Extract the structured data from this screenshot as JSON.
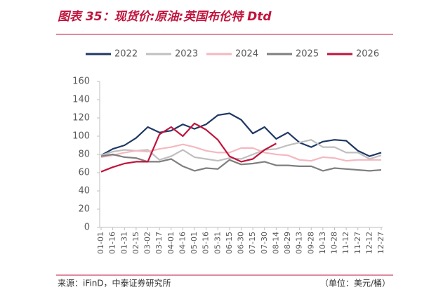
{
  "chart_data": {
    "type": "line",
    "title": "图表 35：现货价:原油:英国布伦特 Dtd",
    "source": "来源：iFinD，中泰证券研究所",
    "unit_note": "（单位：美元/桶）",
    "categories": [
      "01-01",
      "01-16",
      "01-31",
      "02-15",
      "03-02",
      "03-17",
      "04-01",
      "04-16",
      "05-01",
      "05-16",
      "05-31",
      "06-15",
      "06-30",
      "07-15",
      "07-30",
      "08-14",
      "08-29",
      "09-13",
      "09-28",
      "10-13",
      "10-28",
      "11-12",
      "11-27",
      "12-12",
      "12-27"
    ],
    "series": [
      {
        "name": "2022",
        "color": "#1f3864",
        "values": [
          79,
          86,
          90,
          98,
          110,
          104,
          106,
          113,
          108,
          113,
          123,
          125,
          118,
          103,
          110,
          97,
          104,
          93,
          88,
          94,
          96,
          95,
          84,
          78,
          82
        ]
      },
      {
        "name": "2023",
        "color": "#bfbfbf",
        "values": [
          79,
          83,
          85,
          84,
          85,
          74,
          78,
          85,
          77,
          75,
          73,
          76,
          75,
          80,
          85,
          86,
          90,
          93,
          96,
          88,
          88,
          82,
          82,
          75,
          79
        ]
      },
      {
        "name": "2024",
        "color": "#f4b8c0",
        "values": [
          77,
          79,
          82,
          84,
          83,
          86,
          88,
          91,
          88,
          84,
          82,
          82,
          87,
          87,
          82,
          80,
          79,
          74,
          73,
          77,
          76,
          73,
          74,
          74,
          74
        ]
      },
      {
        "name": "2025",
        "color": "#7f7f7f",
        "values": [
          78,
          80,
          77,
          76,
          72,
          72,
          75,
          67,
          62,
          65,
          64,
          74,
          69,
          70,
          72,
          68,
          68,
          67,
          67,
          62,
          65,
          64,
          63,
          62,
          63
        ]
      },
      {
        "name": "2026",
        "color": "#c0143c",
        "values": [
          61,
          66,
          70,
          72,
          72,
          102,
          110,
          100,
          114,
          107,
          96,
          78,
          72,
          75,
          85,
          92,
          null,
          null,
          null,
          null,
          null,
          null,
          null,
          null,
          null
        ]
      }
    ],
    "ylim": [
      0,
      160
    ],
    "yticks": [
      0,
      20,
      40,
      60,
      80,
      100,
      120,
      140,
      160
    ],
    "legend": "top"
  }
}
